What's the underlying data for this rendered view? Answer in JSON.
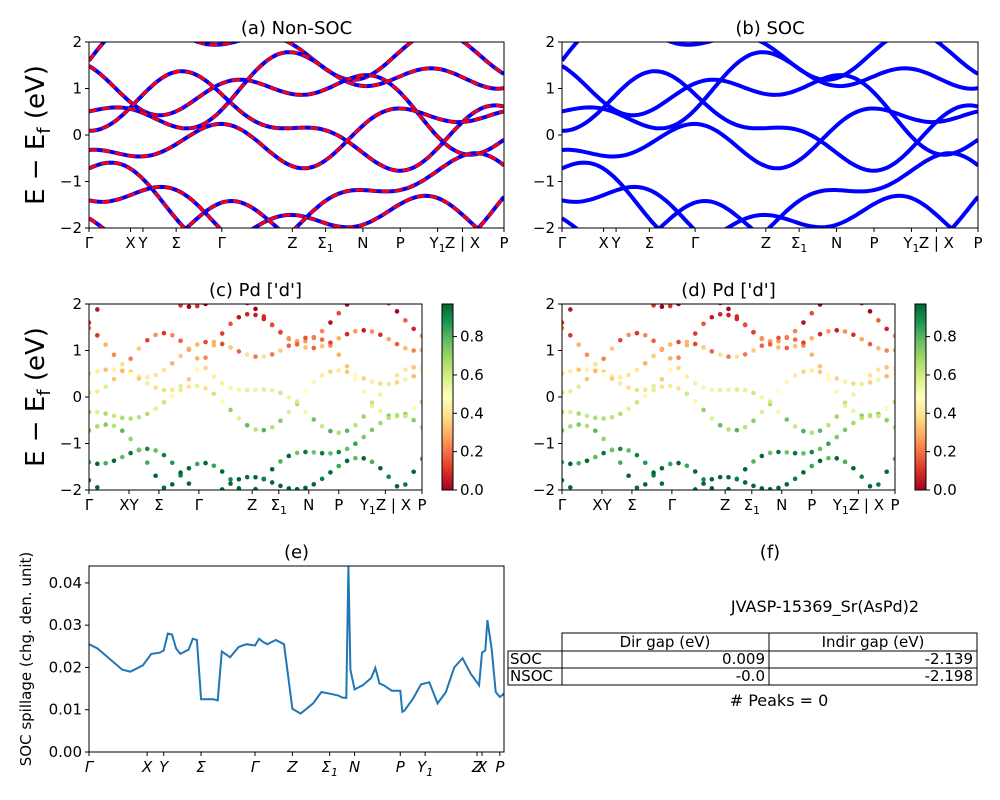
{
  "figure": {
    "ylabel_main": "E − E",
    "ylabel_sub": "f",
    "ylabel_unit": " (eV)"
  },
  "chart_data": [
    {
      "id": "a",
      "type": "line",
      "title": "(a) Non-SOC",
      "ylim": [
        -2,
        2
      ],
      "yticks": [
        "2",
        "1",
        "0",
        "−1",
        "−2"
      ],
      "kpoints": [
        "Γ",
        "X",
        "Y",
        "Σ",
        "Γ",
        "Z",
        "Σ1",
        "N",
        "P",
        "Y1",
        "Z | X",
        "P"
      ],
      "kpos": [
        0,
        0.1,
        0.13,
        0.21,
        0.32,
        0.49,
        0.57,
        0.66,
        0.75,
        0.84,
        0.9,
        1.0
      ],
      "series": [
        {
          "color": "#0000ff",
          "style": "solid"
        },
        {
          "color": "#ff0000",
          "style": "dashed"
        }
      ]
    },
    {
      "id": "b",
      "type": "line",
      "title": "(b) SOC",
      "ylim": [
        -2,
        2
      ],
      "yticks": [
        "2",
        "1",
        "0",
        "−1",
        "−2"
      ],
      "kpoints": [
        "Γ",
        "X",
        "Y",
        "Σ",
        "Γ",
        "Z",
        "Σ1",
        "N",
        "P",
        "Y1",
        "Z | X",
        "P"
      ],
      "kpos": [
        0,
        0.1,
        0.13,
        0.21,
        0.32,
        0.49,
        0.57,
        0.66,
        0.75,
        0.84,
        0.9,
        1.0
      ],
      "series": [
        {
          "color": "#0000ff",
          "style": "solid"
        }
      ]
    },
    {
      "id": "c",
      "type": "scatter",
      "title": "(c)  Pd ['d']",
      "ylim": [
        -2,
        2
      ],
      "yticks": [
        "2",
        "1",
        "0",
        "−1",
        "−2"
      ],
      "kpoints": [
        "Γ",
        "XY",
        "Σ",
        "Γ",
        "Z",
        "Σ1",
        "N",
        "P",
        "Y1Z | X",
        "P"
      ],
      "kpos": [
        0,
        0.12,
        0.21,
        0.33,
        0.49,
        0.57,
        0.66,
        0.75,
        0.89,
        1.0
      ],
      "colorbar": {
        "ticks": [
          "0.0",
          "0.2",
          "0.4",
          "0.6",
          "0.8"
        ],
        "min": 0,
        "max": 0.97
      }
    },
    {
      "id": "d",
      "type": "scatter",
      "title": "(d) Pd ['d']",
      "ylim": [
        -2,
        2
      ],
      "yticks": [
        "2",
        "1",
        "0",
        "−1",
        "−2"
      ],
      "kpoints": [
        "Γ",
        "XY",
        "Σ",
        "Γ",
        "Z",
        "Σ1",
        "N",
        "P",
        "Y1Z | X",
        "P"
      ],
      "kpos": [
        0,
        0.12,
        0.21,
        0.33,
        0.49,
        0.57,
        0.66,
        0.75,
        0.89,
        1.0
      ],
      "colorbar": {
        "ticks": [
          "0.0",
          "0.2",
          "0.4",
          "0.6",
          "0.8"
        ],
        "min": 0,
        "max": 0.97
      }
    },
    {
      "id": "e",
      "type": "line",
      "title": "(e)",
      "ylabel": "SOC spillage (chg. den. unit)",
      "ylim": [
        0,
        0.044
      ],
      "yticks": [
        "0.04",
        "0.03",
        "0.02",
        "0.01",
        "0.00"
      ],
      "ytick_values": [
        0.04,
        0.03,
        0.02,
        0.01,
        0.0
      ],
      "kpoints": [
        "Γ",
        "X",
        "Y",
        "Σ",
        "Γ",
        "Z",
        "Σ1",
        "N",
        "P",
        "Y1",
        "Z",
        "X",
        "P"
      ],
      "kpos": [
        0,
        0.14,
        0.18,
        0.27,
        0.4,
        0.49,
        0.58,
        0.64,
        0.75,
        0.81,
        0.935,
        0.947,
        0.99
      ],
      "x": [
        0,
        0.02,
        0.05,
        0.08,
        0.1,
        0.13,
        0.15,
        0.17,
        0.18,
        0.19,
        0.2,
        0.21,
        0.22,
        0.24,
        0.25,
        0.26,
        0.27,
        0.28,
        0.29,
        0.3,
        0.31,
        0.32,
        0.34,
        0.36,
        0.37,
        0.38,
        0.4,
        0.41,
        0.42,
        0.43,
        0.45,
        0.47,
        0.49,
        0.51,
        0.54,
        0.56,
        0.58,
        0.6,
        0.61,
        0.62,
        0.625,
        0.63,
        0.64,
        0.66,
        0.68,
        0.69,
        0.7,
        0.71,
        0.73,
        0.75,
        0.755,
        0.76,
        0.78,
        0.8,
        0.82,
        0.84,
        0.86,
        0.88,
        0.9,
        0.92,
        0.935,
        0.94,
        0.947,
        0.955,
        0.96,
        0.97,
        0.98,
        0.99,
        1.0
      ],
      "values": [
        0.0255,
        0.0245,
        0.022,
        0.0195,
        0.019,
        0.0205,
        0.0232,
        0.0235,
        0.024,
        0.028,
        0.0278,
        0.0245,
        0.0232,
        0.0242,
        0.0268,
        0.0265,
        0.0125,
        0.0125,
        0.0125,
        0.0125,
        0.0122,
        0.0238,
        0.0224,
        0.0248,
        0.0252,
        0.0255,
        0.0252,
        0.0268,
        0.026,
        0.0255,
        0.0265,
        0.0255,
        0.0102,
        0.0091,
        0.0115,
        0.0142,
        0.0138,
        0.0134,
        0.0129,
        0.0128,
        0.044,
        0.0195,
        0.0148,
        0.0158,
        0.0175,
        0.0199,
        0.0162,
        0.0158,
        0.0145,
        0.0145,
        0.0095,
        0.0098,
        0.0125,
        0.016,
        0.0165,
        0.0115,
        0.0142,
        0.02,
        0.0222,
        0.0185,
        0.0165,
        0.0158,
        0.0235,
        0.024,
        0.0312,
        0.0245,
        0.0142,
        0.013,
        0.0138
      ],
      "color": "#1f77b4"
    }
  ],
  "panel_f": {
    "title": "(f)",
    "material": "JVASP-15369_Sr(AsPd)2",
    "table": {
      "headers": [
        "Dir gap (eV)",
        "Indir gap (eV)"
      ],
      "rows": [
        {
          "label": "SOC",
          "dir": "0.009",
          "indir": "-2.139"
        },
        {
          "label": "NSOC",
          "dir": "-0.0",
          "indir": "-2.198"
        }
      ]
    },
    "peaks": "# Peaks = 0"
  }
}
